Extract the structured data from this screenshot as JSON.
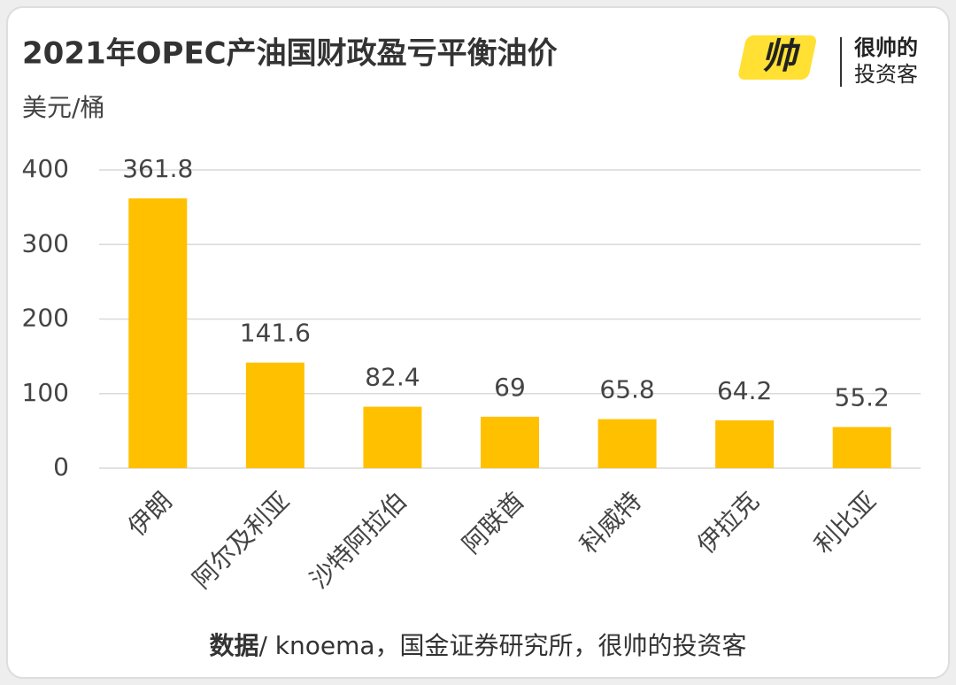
{
  "chart_data": {
    "type": "bar",
    "title": "2021年OPEC产油国财政盈亏平衡油价",
    "y_label": "美元/桶",
    "categories": [
      "伊朗",
      "阿尔及利亚",
      "沙特阿拉伯",
      "阿联酋",
      "科威特",
      "伊拉克",
      "利比亚"
    ],
    "values": [
      361.8,
      141.6,
      82.4,
      69,
      65.8,
      64.2,
      55.2
    ],
    "color": "#FFC000",
    "ylim": [
      0,
      400
    ],
    "yticks": [
      0,
      100,
      200,
      300,
      400
    ],
    "grid": true,
    "source_label": "数据",
    "source": "/ knoema，国金证券研究所，很帅的投资客",
    "logo": {
      "icon": "帅",
      "lines": [
        "很帅的",
        "投资客"
      ]
    }
  }
}
